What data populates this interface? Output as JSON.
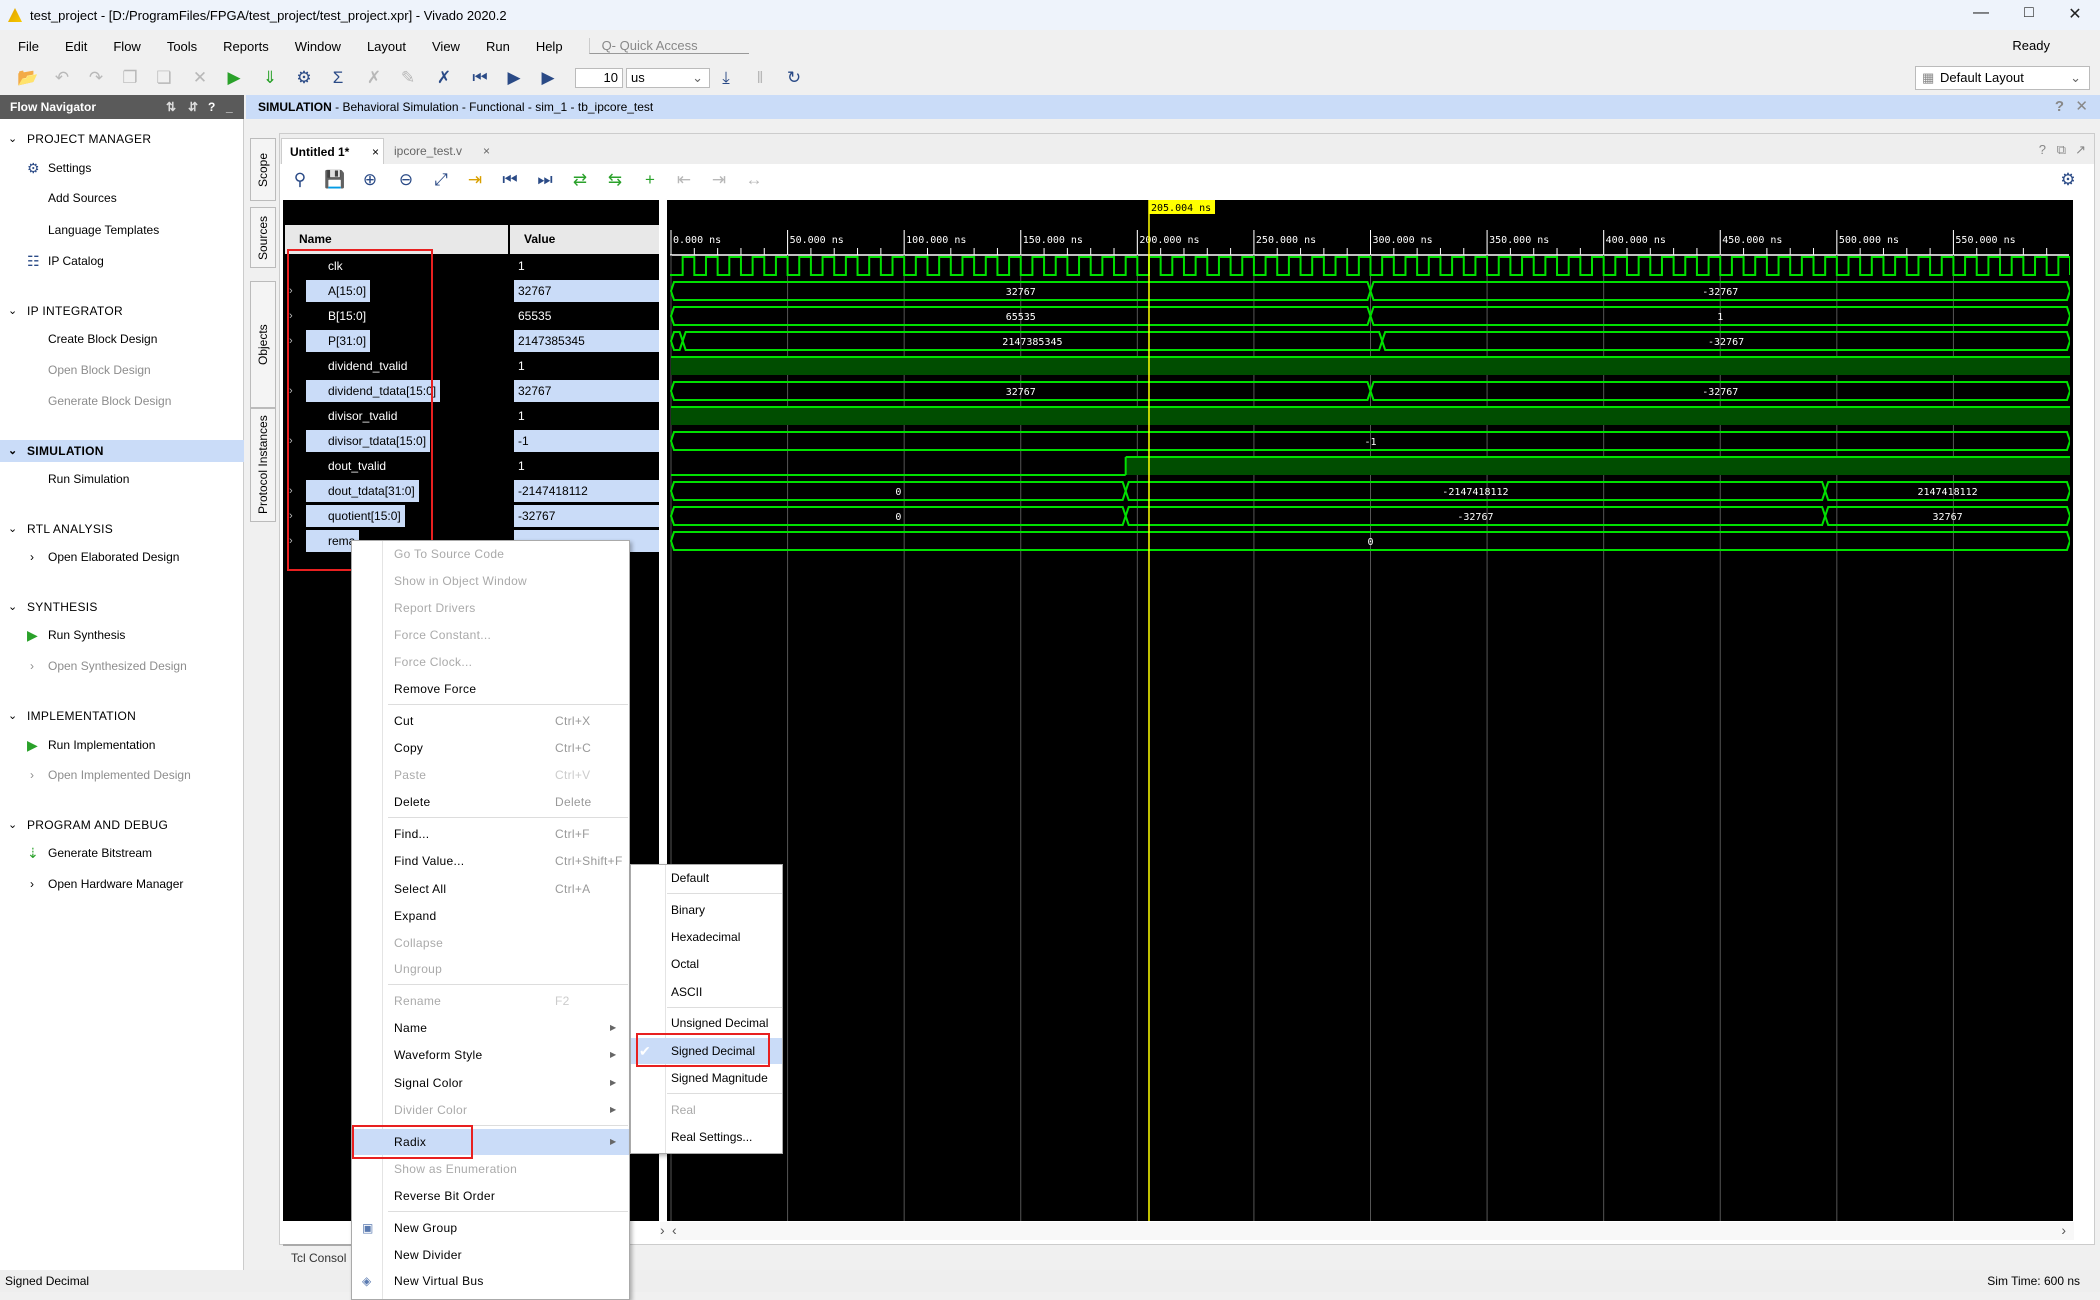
{
  "window": {
    "title": "test_project - [D:/ProgramFiles/FPGA/test_project/test_project.xpr] - Vivado 2020.2",
    "status": "Ready"
  },
  "menu": [
    "File",
    "Edit",
    "Flow",
    "Tools",
    "Reports",
    "Window",
    "Layout",
    "View",
    "Run",
    "Help"
  ],
  "quick_access": {
    "placeholder": "Q- Quick Access"
  },
  "toolbar": {
    "run_time_value": "10",
    "run_time_unit": "us",
    "layout": "Default Layout"
  },
  "flow_navigator": {
    "title": "Flow Navigator",
    "items": [
      {
        "label": "PROJECT MANAGER",
        "kind": "section"
      },
      {
        "label": "Settings",
        "kind": "item",
        "icon": "gear-icon"
      },
      {
        "label": "Add Sources",
        "kind": "item"
      },
      {
        "label": "Language Templates",
        "kind": "item"
      },
      {
        "label": "IP Catalog",
        "kind": "item",
        "icon": "ip-catalog-icon"
      },
      {
        "label": "IP INTEGRATOR",
        "kind": "section"
      },
      {
        "label": "Create Block Design",
        "kind": "item"
      },
      {
        "label": "Open Block Design",
        "kind": "item",
        "disabled": true
      },
      {
        "label": "Generate Block Design",
        "kind": "item",
        "disabled": true
      },
      {
        "label": "SIMULATION",
        "kind": "section",
        "selected": true
      },
      {
        "label": "Run Simulation",
        "kind": "item"
      },
      {
        "label": "RTL ANALYSIS",
        "kind": "section"
      },
      {
        "label": "Open Elaborated Design",
        "kind": "item",
        "expand": true
      },
      {
        "label": "SYNTHESIS",
        "kind": "section"
      },
      {
        "label": "Run Synthesis",
        "kind": "item",
        "icon": "run-icon"
      },
      {
        "label": "Open Synthesized Design",
        "kind": "item",
        "expand": true,
        "disabled": true
      },
      {
        "label": "IMPLEMENTATION",
        "kind": "section"
      },
      {
        "label": "Run Implementation",
        "kind": "item",
        "icon": "run-icon"
      },
      {
        "label": "Open Implemented Design",
        "kind": "item",
        "expand": true,
        "disabled": true
      },
      {
        "label": "PROGRAM AND DEBUG",
        "kind": "section"
      },
      {
        "label": "Generate Bitstream",
        "kind": "item",
        "icon": "bitstream-icon"
      },
      {
        "label": "Open Hardware Manager",
        "kind": "item",
        "expand": true
      }
    ]
  },
  "sim_header": {
    "bold": "SIMULATION",
    "rest": " - Behavioral Simulation - Functional - sim_1 - tb_ipcore_test"
  },
  "side_tabs": [
    "Scope",
    "Sources",
    "Objects",
    "Protocol Instances"
  ],
  "tabs": [
    {
      "label": "Untitled 1*",
      "active": true
    },
    {
      "label": "ipcore_test.v",
      "active": false
    }
  ],
  "wave": {
    "name_header": "Name",
    "value_header": "Value",
    "cursor": {
      "time_ns": 205.004,
      "label": "205.004 ns"
    },
    "time_range_ns": [
      0,
      600
    ],
    "ruler_labels": [
      "0.000 ns",
      "50.000 ns",
      "100.000 ns",
      "150.000 ns",
      "200.000 ns",
      "250.000 ns",
      "300.000 ns",
      "350.000 ns",
      "400.000 ns",
      "450.000 ns",
      "500.000 ns",
      "550.000 ns"
    ],
    "colors": {
      "wave": "#00e000",
      "high_fill": "#004d00",
      "cursor": "#ffff00"
    },
    "signals": [
      {
        "name": "clk",
        "value": "1",
        "type": "clock",
        "period_ns": 10,
        "selected": false
      },
      {
        "name": "A[15:0]",
        "value": "32767",
        "type": "bus",
        "selected": true,
        "segments": [
          {
            "t0": 0,
            "t1": 300,
            "v": "32767"
          },
          {
            "t0": 300,
            "t1": 600,
            "v": "-32767"
          }
        ]
      },
      {
        "name": "B[15:0]",
        "value": "65535",
        "type": "bus",
        "selected": false,
        "segments": [
          {
            "t0": 0,
            "t1": 300,
            "v": "65535"
          },
          {
            "t0": 300,
            "t1": 600,
            "v": "1"
          }
        ]
      },
      {
        "name": "P[31:0]",
        "value": "2147385345",
        "type": "bus",
        "selected": true,
        "segments": [
          {
            "t0": 0,
            "t1": 5,
            "v": ""
          },
          {
            "t0": 5,
            "t1": 305,
            "v": "2147385345"
          },
          {
            "t0": 305,
            "t1": 600,
            "v": "-32767"
          }
        ]
      },
      {
        "name": "dividend_tvalid",
        "value": "1",
        "type": "bit",
        "selected": false,
        "segments": [
          {
            "t0": 0,
            "t1": 600,
            "v": 1
          }
        ]
      },
      {
        "name": "dividend_tdata[15:0]",
        "value": "32767",
        "type": "bus",
        "selected": true,
        "segments": [
          {
            "t0": 0,
            "t1": 300,
            "v": "32767"
          },
          {
            "t0": 300,
            "t1": 600,
            "v": "-32767"
          }
        ]
      },
      {
        "name": "divisor_tvalid",
        "value": "1",
        "type": "bit",
        "selected": false,
        "segments": [
          {
            "t0": 0,
            "t1": 600,
            "v": 1
          }
        ]
      },
      {
        "name": "divisor_tdata[15:0]",
        "value": "-1",
        "type": "bus",
        "selected": true,
        "segments": [
          {
            "t0": 0,
            "t1": 600,
            "v": "-1"
          }
        ]
      },
      {
        "name": "dout_tvalid",
        "value": "1",
        "type": "bit",
        "selected": false,
        "segments": [
          {
            "t0": 0,
            "t1": 195,
            "v": 0
          },
          {
            "t0": 195,
            "t1": 600,
            "v": 1
          }
        ]
      },
      {
        "name": "dout_tdata[31:0]",
        "value": "-2147418112",
        "type": "bus",
        "selected": true,
        "segments": [
          {
            "t0": 0,
            "t1": 195,
            "v": "0"
          },
          {
            "t0": 195,
            "t1": 495,
            "v": "-2147418112"
          },
          {
            "t0": 495,
            "t1": 600,
            "v": "2147418112"
          }
        ]
      },
      {
        "name": "quotient[15:0]",
        "value": "-32767",
        "type": "bus",
        "selected": true,
        "segments": [
          {
            "t0": 0,
            "t1": 195,
            "v": "0"
          },
          {
            "t0": 195,
            "t1": 495,
            "v": "-32767"
          },
          {
            "t0": 495,
            "t1": 600,
            "v": "32767"
          }
        ]
      },
      {
        "name": "rema",
        "value": "",
        "type": "bus",
        "selected": true,
        "segments": [
          {
            "t0": 0,
            "t1": 600,
            "v": "0"
          }
        ]
      }
    ]
  },
  "context_menu": {
    "items": [
      {
        "label": "Go To Source Code",
        "disabled": true
      },
      {
        "label": "Show in Object Window",
        "disabled": true
      },
      {
        "label": "Report Drivers",
        "disabled": true
      },
      {
        "label": "Force Constant...",
        "disabled": true
      },
      {
        "label": "Force Clock...",
        "disabled": true
      },
      {
        "label": "Remove Force",
        "sep_after": true
      },
      {
        "label": "Cut",
        "shortcut": "Ctrl+X"
      },
      {
        "label": "Copy",
        "shortcut": "Ctrl+C"
      },
      {
        "label": "Paste",
        "shortcut": "Ctrl+V",
        "disabled": true
      },
      {
        "label": "Delete",
        "shortcut": "Delete",
        "sep_after": true
      },
      {
        "label": "Find...",
        "shortcut": "Ctrl+F"
      },
      {
        "label": "Find Value...",
        "shortcut": "Ctrl+Shift+F"
      },
      {
        "label": "Select All",
        "shortcut": "Ctrl+A"
      },
      {
        "label": "Expand"
      },
      {
        "label": "Collapse",
        "disabled": true
      },
      {
        "label": "Ungroup",
        "disabled": true,
        "sep_after": true
      },
      {
        "label": "Rename",
        "shortcut": "F2",
        "disabled": true
      },
      {
        "label": "Name",
        "submenu": true
      },
      {
        "label": "Waveform Style",
        "submenu": true
      },
      {
        "label": "Signal Color",
        "submenu": true
      },
      {
        "label": "Divider Color",
        "submenu": true,
        "disabled": true,
        "sep_after": true
      },
      {
        "label": "Radix",
        "submenu": true,
        "highlighted": true
      },
      {
        "label": "Show as Enumeration",
        "disabled": true
      },
      {
        "label": "Reverse Bit Order",
        "sep_after": true
      },
      {
        "label": "New Group",
        "icon": "group-icon"
      },
      {
        "label": "New Divider"
      },
      {
        "label": "New Virtual Bus",
        "icon": "virtual-bus-icon"
      }
    ]
  },
  "radix_menu": {
    "items": [
      {
        "label": "Default",
        "sep_after": true
      },
      {
        "label": "Binary"
      },
      {
        "label": "Hexadecimal"
      },
      {
        "label": "Octal"
      },
      {
        "label": "ASCII",
        "sep_after": true
      },
      {
        "label": "Unsigned Decimal"
      },
      {
        "label": "Signed Decimal",
        "checked": true
      },
      {
        "label": "Signed Magnitude",
        "sep_after": true
      },
      {
        "label": "Real",
        "disabled": true
      },
      {
        "label": "Real Settings..."
      }
    ]
  },
  "tcl_tab": "Tcl Consol",
  "statusbar": {
    "left": "Signed Decimal",
    "right": "Sim Time: 600 ns"
  }
}
